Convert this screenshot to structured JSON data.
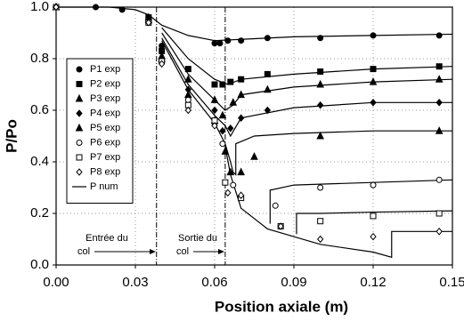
{
  "chart_data": {
    "type": "scatter",
    "xlabel": "Position axiale (m)",
    "ylabel": "P/Po",
    "xlim": [
      0,
      0.15
    ],
    "ylim": [
      0,
      1.0
    ],
    "xticks": [
      {
        "value": 0,
        "label": "0.00"
      },
      0.03,
      0.06,
      0.09,
      0.12,
      0.15
    ],
    "yticks": [
      {
        "value": 0,
        "label": "0.0"
      },
      0.2,
      0.4,
      0.6,
      0.8,
      {
        "value": 1,
        "label": "1.0"
      }
    ],
    "grid": true,
    "legend": "left",
    "throat_lines": [
      0.038,
      0.064
    ],
    "annotations": [
      [
        "Entrée du",
        "col"
      ],
      [
        "Sortie du",
        "col"
      ]
    ],
    "series": [
      {
        "name": "P1 exp",
        "marker": "circle",
        "filled": true,
        "color": "#000",
        "x": [
          0,
          0.015,
          0.025,
          0.035,
          0.04,
          0.06,
          0.062,
          0.065,
          0.07,
          0.08,
          0.1,
          0.12,
          0.145
        ],
        "values": [
          1,
          1,
          0.99,
          0.96,
          0.85,
          0.86,
          0.86,
          0.87,
          0.87,
          0.88,
          0.88,
          0.89,
          0.89
        ]
      },
      {
        "name": "P2 exp",
        "marker": "square",
        "filled": true,
        "color": "#000",
        "x": [
          0,
          0.035,
          0.04,
          0.05,
          0.06,
          0.063,
          0.066,
          0.07,
          0.08,
          0.1,
          0.12,
          0.145
        ],
        "values": [
          1,
          0.96,
          0.83,
          0.76,
          0.7,
          0.7,
          0.71,
          0.72,
          0.74,
          0.75,
          0.76,
          0.77
        ]
      },
      {
        "name": "P3 exp",
        "marker": "triangle",
        "filled": true,
        "color": "#000",
        "x": [
          0,
          0.035,
          0.04,
          0.05,
          0.06,
          0.063,
          0.067,
          0.07,
          0.08,
          0.1,
          0.12,
          0.145
        ],
        "values": [
          1,
          0.96,
          0.81,
          0.72,
          0.64,
          0.58,
          0.63,
          0.66,
          0.68,
          0.7,
          0.71,
          0.72
        ]
      },
      {
        "name": "P4 exp",
        "marker": "diamond",
        "filled": true,
        "color": "#000",
        "x": [
          0,
          0.035,
          0.04,
          0.05,
          0.06,
          0.063,
          0.066,
          0.07,
          0.08,
          0.1,
          0.12,
          0.145
        ],
        "values": [
          1,
          0.95,
          0.8,
          0.68,
          0.6,
          0.52,
          0.53,
          0.57,
          0.6,
          0.62,
          0.63,
          0.63
        ]
      },
      {
        "name": "P5 exp",
        "marker": "triangle",
        "filled": true,
        "color": "#000",
        "x": [
          0,
          0.035,
          0.04,
          0.05,
          0.06,
          0.064,
          0.066,
          0.07,
          0.075,
          0.1,
          0.145
        ],
        "values": [
          1,
          0.95,
          0.8,
          0.66,
          0.56,
          0.44,
          0.36,
          0.36,
          0.42,
          0.5,
          0.52
        ]
      },
      {
        "name": "P6 exp",
        "marker": "circle",
        "filled": false,
        "color": "#000",
        "x": [
          0,
          0.035,
          0.04,
          0.05,
          0.06,
          0.063,
          0.067,
          0.083,
          0.1,
          0.12,
          0.145
        ],
        "values": [
          1,
          0.94,
          0.79,
          0.64,
          0.55,
          0.47,
          0.31,
          0.23,
          0.3,
          0.31,
          0.33
        ]
      },
      {
        "name": "P7 exp",
        "marker": "square",
        "filled": false,
        "color": "#000",
        "x": [
          0,
          0.035,
          0.04,
          0.05,
          0.06,
          0.064,
          0.07,
          0.085,
          0.1,
          0.12,
          0.145
        ],
        "values": [
          1,
          0.94,
          0.79,
          0.62,
          0.56,
          0.32,
          0.26,
          0.15,
          0.17,
          0.19,
          0.2
        ]
      },
      {
        "name": "P8 exp",
        "marker": "diamond",
        "filled": false,
        "color": "#000",
        "x": [
          0,
          0.035,
          0.04,
          0.05,
          0.06,
          0.065,
          0.07,
          0.085,
          0.1,
          0.12,
          0.145
        ],
        "values": [
          1,
          0.94,
          0.78,
          0.6,
          0.54,
          0.28,
          0.27,
          0.15,
          0.1,
          0.11,
          0.13
        ]
      }
    ],
    "model": {
      "name": "P num",
      "color": "#000",
      "curves": [
        {
          "x": [
            0,
            0.02,
            0.03,
            0.035,
            0.04,
            0.05,
            0.06,
            0.07,
            0.09,
            0.12,
            0.15
          ],
          "values": [
            1,
            1,
            0.99,
            0.97,
            0.93,
            0.89,
            0.87,
            0.875,
            0.885,
            0.89,
            0.895
          ]
        },
        {
          "x": [
            0.04,
            0.05,
            0.06,
            0.065,
            0.07,
            0.09,
            0.12,
            0.15
          ],
          "values": [
            0.92,
            0.8,
            0.72,
            0.7,
            0.72,
            0.74,
            0.76,
            0.77
          ]
        },
        {
          "x": [
            0.04,
            0.05,
            0.06,
            0.064,
            0.067,
            0.07,
            0.09,
            0.12,
            0.15
          ],
          "values": [
            0.9,
            0.74,
            0.64,
            0.6,
            0.62,
            0.66,
            0.69,
            0.71,
            0.72
          ]
        },
        {
          "x": [
            0.04,
            0.05,
            0.06,
            0.064,
            0.066,
            0.07,
            0.09,
            0.12,
            0.15
          ],
          "values": [
            0.88,
            0.7,
            0.58,
            0.54,
            0.5,
            0.57,
            0.61,
            0.63,
            0.63
          ]
        },
        {
          "x": [
            0.04,
            0.05,
            0.06,
            0.064,
            0.066,
            0.067,
            0.068,
            0.068,
            0.075,
            0.09,
            0.12,
            0.15
          ],
          "values": [
            0.87,
            0.68,
            0.55,
            0.47,
            0.4,
            0.36,
            0.35,
            0.47,
            0.5,
            0.51,
            0.52,
            0.52
          ]
        },
        {
          "x": [
            0.064,
            0.066,
            0.07,
            0.08,
            0.1,
            0.12,
            0.127,
            0.127,
            0.15
          ],
          "values": [
            0.46,
            0.35,
            0.22,
            0.14,
            0.08,
            0.05,
            0.03,
            0.13,
            0.13
          ]
        },
        {
          "x": [
            0.081,
            0.081,
            0.09,
            0.12,
            0.15
          ],
          "values": [
            0.16,
            0.29,
            0.31,
            0.32,
            0.33
          ]
        },
        {
          "x": [
            0.091,
            0.091,
            0.1,
            0.12,
            0.15
          ],
          "values": [
            0.12,
            0.2,
            0.2,
            0.205,
            0.21
          ]
        }
      ]
    }
  }
}
